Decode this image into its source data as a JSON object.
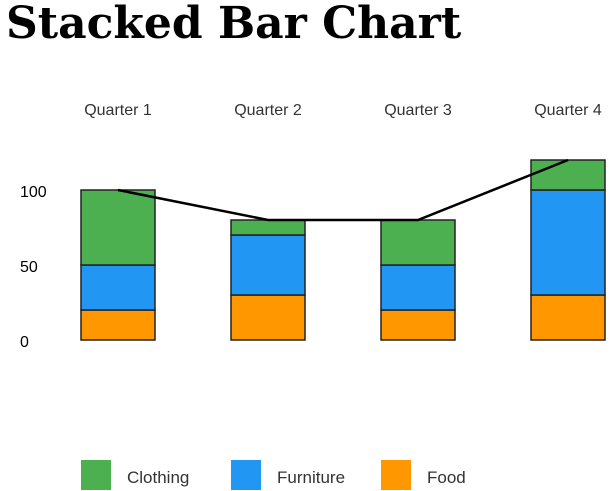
{
  "title": "Stacked Bar Chart",
  "chart_data": {
    "type": "bar",
    "stacked": true,
    "categories": [
      "Quarter 1",
      "Quarter 2",
      "Quarter 3",
      "Quarter 4"
    ],
    "series": [
      {
        "name": "Food",
        "values": [
          20,
          30,
          20,
          30
        ],
        "color": "#ff9800"
      },
      {
        "name": "Furniture",
        "values": [
          30,
          40,
          30,
          70
        ],
        "color": "#2196f3"
      },
      {
        "name": "Clothing",
        "values": [
          50,
          10,
          30,
          20
        ],
        "color": "#4caf50"
      }
    ],
    "line": {
      "values": [
        100,
        80,
        80,
        120
      ],
      "color": "#000000"
    },
    "y_ticks": [
      "0",
      "50",
      "100"
    ],
    "ylim": [
      0,
      120
    ],
    "x_label_position": "top",
    "legend_position": "bottom",
    "grid": false
  }
}
